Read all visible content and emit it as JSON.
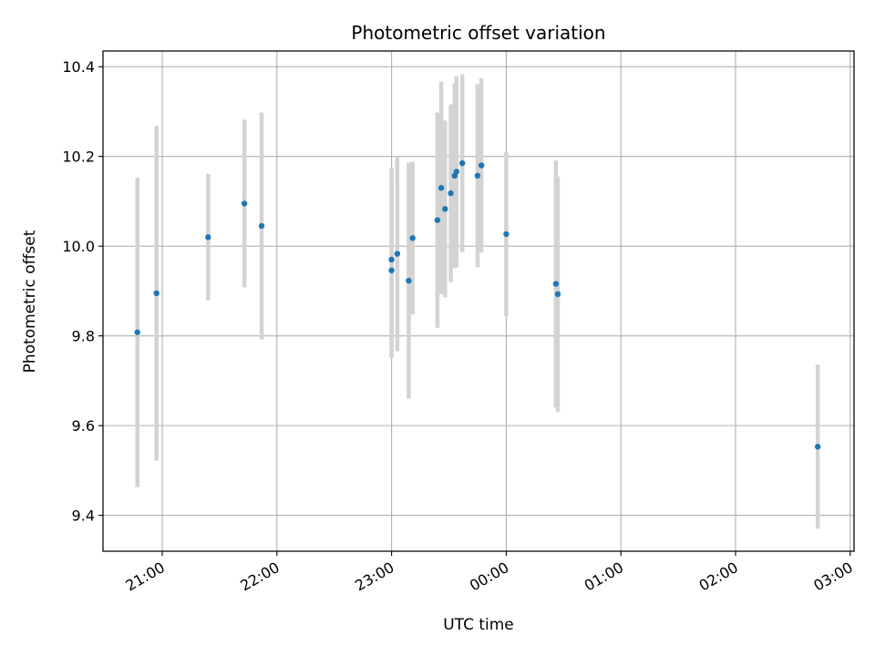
{
  "chart_data": {
    "type": "scatter",
    "title": "Photometric offset variation",
    "xlabel": "UTC time",
    "ylabel": "Photometric offset",
    "x_ticks": [
      "21:00",
      "22:00",
      "23:00",
      "00:00",
      "01:00",
      "02:00",
      "03:00"
    ],
    "y_ticks": [
      "9.4",
      "9.6",
      "9.8",
      "10.0",
      "10.2",
      "10.4"
    ],
    "xlim": [
      "20:29",
      "03:02"
    ],
    "ylim": [
      9.32,
      10.435
    ],
    "grid": true,
    "point_color": "#1f77b4",
    "errorbar_color": "#d3d3d3",
    "points": [
      {
        "time": "20:47",
        "y": 9.808,
        "err": 0.345
      },
      {
        "time": "20:57",
        "y": 9.895,
        "err": 0.373
      },
      {
        "time": "21:24",
        "y": 10.02,
        "err": 0.141
      },
      {
        "time": "21:43",
        "y": 10.095,
        "err": 0.187
      },
      {
        "time": "21:52",
        "y": 10.045,
        "err": 0.253
      },
      {
        "time": "23:00",
        "y": 9.97,
        "err": 0.205
      },
      {
        "time": "23:00",
        "y": 9.946,
        "err": 0.195
      },
      {
        "time": "23:03",
        "y": 9.983,
        "err": 0.217
      },
      {
        "time": "23:09",
        "y": 9.923,
        "err": 0.263
      },
      {
        "time": "23:11",
        "y": 10.018,
        "err": 0.17
      },
      {
        "time": "23:24",
        "y": 10.058,
        "err": 0.24
      },
      {
        "time": "23:26",
        "y": 10.13,
        "err": 0.237
      },
      {
        "time": "23:28",
        "y": 10.083,
        "err": 0.197
      },
      {
        "time": "23:31",
        "y": 10.118,
        "err": 0.198
      },
      {
        "time": "23:33",
        "y": 10.157,
        "err": 0.206
      },
      {
        "time": "23:34",
        "y": 10.166,
        "err": 0.213
      },
      {
        "time": "23:37",
        "y": 10.185,
        "err": 0.198
      },
      {
        "time": "23:45",
        "y": 10.157,
        "err": 0.204
      },
      {
        "time": "23:47",
        "y": 10.18,
        "err": 0.194
      },
      {
        "time": "24:00",
        "y": 10.027,
        "err": 0.183
      },
      {
        "time": "24:26",
        "y": 9.916,
        "err": 0.275
      },
      {
        "time": "24:27",
        "y": 9.893,
        "err": 0.262
      },
      {
        "time": "26:43",
        "y": 9.553,
        "err": 0.183
      }
    ]
  }
}
